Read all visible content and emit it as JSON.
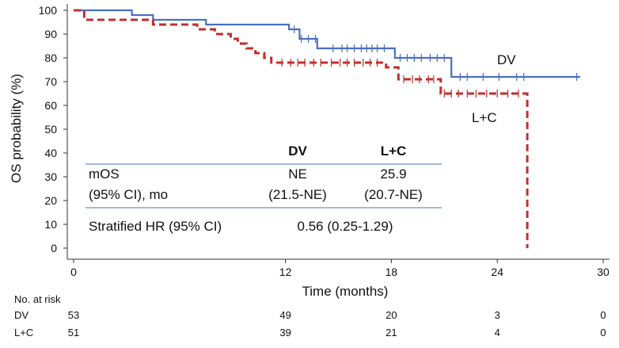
{
  "chart_data": {
    "type": "line",
    "title": "",
    "xlabel": "Time (months)",
    "ylabel": "OS probability (%)",
    "xlim": [
      0,
      30
    ],
    "ylim": [
      0,
      100
    ],
    "x_ticks": [
      "0",
      "12",
      "18",
      "24",
      "30"
    ],
    "x_tick_values": [
      0,
      12,
      18,
      24,
      30
    ],
    "y_ticks": [
      "0",
      "10",
      "20",
      "30",
      "40",
      "50",
      "60",
      "70",
      "80",
      "90",
      "100"
    ],
    "y_tick_values": [
      0,
      10,
      20,
      30,
      40,
      50,
      60,
      70,
      80,
      90,
      100
    ],
    "colors": {
      "DV": "#4a6fc1",
      "L+C": "#c0302e"
    },
    "series": [
      {
        "name": "DV",
        "style": "solid",
        "steps": [
          [
            0,
            100
          ],
          [
            3.3,
            98
          ],
          [
            4.5,
            96
          ],
          [
            7.5,
            94
          ],
          [
            12.2,
            92
          ],
          [
            12.8,
            88
          ],
          [
            13.8,
            84
          ],
          [
            18.2,
            80
          ],
          [
            21.4,
            72
          ],
          [
            28.7,
            72
          ]
        ],
        "censors": [
          12.5,
          12.9,
          13.3,
          13.7,
          14.7,
          15.2,
          15.5,
          15.9,
          16.3,
          16.6,
          16.9,
          17.2,
          17.6,
          18.5,
          18.9,
          19.3,
          19.7,
          20.2,
          20.6,
          21.0,
          21.9,
          22.3,
          23.2,
          24.1,
          25.1,
          25.5,
          28.5
        ]
      },
      {
        "name": "L+C",
        "style": "dashed",
        "steps": [
          [
            0,
            100
          ],
          [
            0.6,
            96
          ],
          [
            4.5,
            94
          ],
          [
            7.0,
            92
          ],
          [
            8.0,
            90
          ],
          [
            8.9,
            88
          ],
          [
            9.3,
            86
          ],
          [
            9.8,
            84
          ],
          [
            10.3,
            82
          ],
          [
            10.8,
            80
          ],
          [
            11.2,
            78
          ],
          [
            17.7,
            76
          ],
          [
            18.4,
            71
          ],
          [
            20.8,
            65
          ],
          [
            25.7,
            0
          ]
        ],
        "censors": [
          11.8,
          12.3,
          12.7,
          13.1,
          13.6,
          14.0,
          14.6,
          15.1,
          15.5,
          15.9,
          16.4,
          16.8,
          17.2,
          18.7,
          19.2,
          19.6,
          20.1,
          20.4,
          21.0,
          21.4,
          21.8,
          22.3,
          22.8,
          23.4,
          24.0,
          24.6,
          25.2
        ]
      }
    ],
    "annotations": {
      "dv_label": "DV",
      "lc_label": "L+C"
    }
  },
  "stats_table": {
    "col_dv": "DV",
    "col_lc": "L+C",
    "row1_label": "mOS",
    "row1_dv": "NE",
    "row1_lc": "25.9",
    "row2_label": "(95% CI), mo",
    "row2_dv": "(21.5-NE)",
    "row2_lc": "(20.7-NE)",
    "hr_label": "Stratified HR (95% CI)",
    "hr_value": "0.56 (0.25-1.29)"
  },
  "risk_table": {
    "title": "No. at risk",
    "rows": [
      {
        "label": "DV",
        "values": [
          "53",
          "49",
          "20",
          "3",
          "0"
        ]
      },
      {
        "label": "L+C",
        "values": [
          "51",
          "39",
          "21",
          "4",
          "0"
        ]
      }
    ]
  }
}
